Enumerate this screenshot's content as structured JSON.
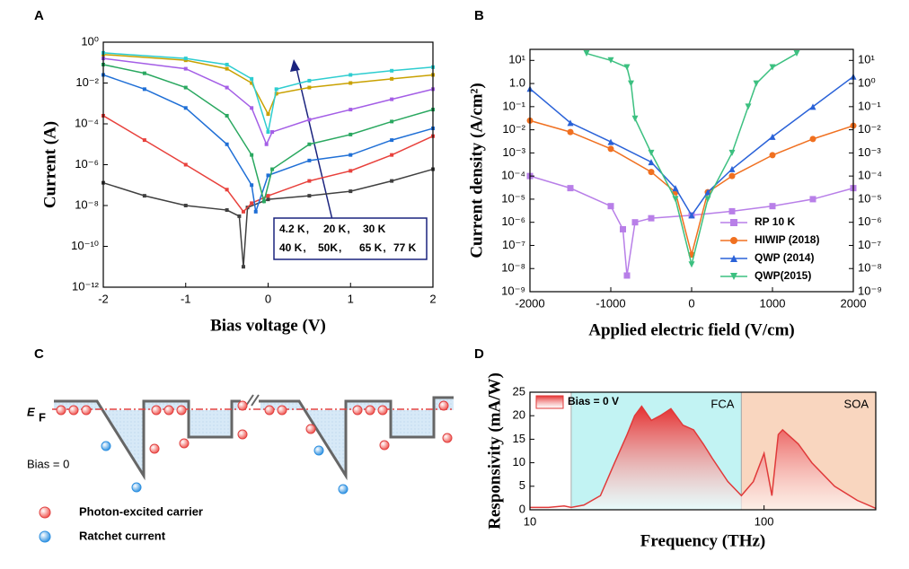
{
  "chart_data": [
    {
      "type": "line",
      "panel": "A",
      "xlabel": "Bias voltage (V)",
      "ylabel": "Current (A)",
      "yscale": "log",
      "xlim": [
        -2,
        2
      ],
      "xticks": [
        -2,
        -1,
        0,
        1,
        2
      ],
      "ylim": [
        1e-12,
        1
      ],
      "yticks": [
        {
          "value": 1,
          "label": "10⁰"
        },
        {
          "value": 0.01,
          "label": "10⁻²"
        },
        {
          "value": 0.0001,
          "label": "10⁻⁴"
        },
        {
          "value": 1e-06,
          "label": "10⁻⁶"
        },
        {
          "value": 1e-08,
          "label": "10⁻⁸"
        },
        {
          "value": 1e-10,
          "label": "10⁻¹⁰"
        },
        {
          "value": 1e-12,
          "label": "10⁻¹²"
        }
      ],
      "legend_separator": ",",
      "series": [
        {
          "name": "4.2 K",
          "color": "#404040",
          "marker": "square",
          "x": [
            -2,
            -1.5,
            -1,
            -0.5,
            -0.35,
            -0.3,
            -0.25,
            0,
            0.5,
            1,
            1.5,
            2
          ],
          "values": [
            1.3e-07,
            3e-08,
            1e-08,
            6e-09,
            3e-09,
            1e-11,
            8e-09,
            2e-08,
            3e-08,
            5e-08,
            1.6e-07,
            6e-07
          ]
        },
        {
          "name": "20 K",
          "color": "#e8413c",
          "marker": "square",
          "x": [
            -2,
            -1.5,
            -1,
            -0.5,
            -0.3,
            -0.2,
            0,
            0.5,
            1,
            1.5,
            2
          ],
          "values": [
            0.00025,
            1.6e-05,
            1e-06,
            6e-08,
            5e-09,
            1.3e-08,
            3e-08,
            1.6e-07,
            5e-07,
            3e-06,
            2.5e-05
          ]
        },
        {
          "name": "30 K",
          "color": "#1f6fd6",
          "marker": "square",
          "x": [
            -2,
            -1.5,
            -1,
            -0.5,
            -0.2,
            -0.15,
            0,
            0.5,
            1,
            1.5,
            2
          ],
          "values": [
            0.025,
            0.005,
            0.0006,
            1e-05,
            1e-07,
            5e-09,
            3e-07,
            1.6e-06,
            3e-06,
            1.6e-05,
            6e-05
          ]
        },
        {
          "name": "40 K",
          "color": "#2aa860",
          "marker": "square",
          "x": [
            -2,
            -1.5,
            -1,
            -0.5,
            -0.2,
            -0.05,
            0.05,
            0.5,
            1,
            1.5,
            2
          ],
          "values": [
            0.08,
            0.03,
            0.006,
            0.00025,
            3e-06,
            1.6e-08,
            6e-07,
            1e-05,
            3e-05,
            0.00013,
            0.0005
          ]
        },
        {
          "name": "50K",
          "color": "#a45ee6",
          "marker": "square",
          "x": [
            -2,
            -1,
            -0.5,
            -0.2,
            -0.02,
            0.05,
            0.5,
            1,
            1.5,
            2
          ],
          "values": [
            0.16,
            0.05,
            0.006,
            0.0006,
            1e-05,
            4e-05,
            0.00016,
            0.0005,
            0.0016,
            0.005
          ]
        },
        {
          "name": "65 K",
          "color": "#c9a100",
          "marker": "square",
          "x": [
            -2,
            -1,
            -0.5,
            -0.2,
            0,
            0.1,
            0.5,
            1,
            1.5,
            2
          ],
          "values": [
            0.25,
            0.13,
            0.05,
            0.01,
            0.0003,
            0.003,
            0.006,
            0.01,
            0.016,
            0.025
          ]
        },
        {
          "name": "77 K",
          "color": "#2ecdd0",
          "marker": "square",
          "x": [
            -2,
            -1,
            -0.5,
            -0.2,
            0,
            0.1,
            0.5,
            1,
            1.5,
            2
          ],
          "values": [
            0.3,
            0.16,
            0.08,
            0.016,
            4e-05,
            0.005,
            0.013,
            0.025,
            0.04,
            0.06
          ]
        }
      ]
    },
    {
      "type": "line",
      "panel": "B",
      "xlabel": "Applied electric field (V/cm)",
      "ylabel": "Current density (A/cm²)",
      "yscale": "log",
      "xlim": [
        -2000,
        2000
      ],
      "xticks": [
        -2000,
        -1000,
        0,
        1000,
        2000
      ],
      "ylim": [
        1e-09,
        30
      ],
      "yticks": [
        {
          "value": 10,
          "label": "10¹"
        },
        {
          "value": 1,
          "label": "1.0"
        },
        {
          "value": 0.1,
          "label": "10⁻¹"
        },
        {
          "value": 0.01,
          "label": "10⁻²"
        },
        {
          "value": 0.001,
          "label": "10⁻³"
        },
        {
          "value": 0.0001,
          "label": "10⁻⁴"
        },
        {
          "value": 1e-05,
          "label": "10⁻⁵"
        },
        {
          "value": 1e-06,
          "label": "10⁻⁶"
        },
        {
          "value": 1e-07,
          "label": "10⁻⁷"
        },
        {
          "value": 1e-08,
          "label": "10⁻⁸"
        },
        {
          "value": 1e-09,
          "label": "10⁻⁹"
        }
      ],
      "y2lim": [
        1e-09,
        30
      ],
      "y2ticks": [
        {
          "value": 10,
          "label": "10¹"
        },
        {
          "value": 1,
          "label": "10⁰"
        },
        {
          "value": 0.1,
          "label": "10⁻¹"
        },
        {
          "value": 0.01,
          "label": "10⁻²"
        },
        {
          "value": 0.001,
          "label": "10⁻³"
        },
        {
          "value": 0.0001,
          "label": "10⁻⁴"
        },
        {
          "value": 1e-05,
          "label": "10⁻⁵"
        },
        {
          "value": 1e-06,
          "label": "10⁻⁶"
        },
        {
          "value": 1e-07,
          "label": "10⁻⁷"
        },
        {
          "value": 1e-08,
          "label": "10⁻⁸"
        },
        {
          "value": 1e-09,
          "label": "10⁻⁹"
        }
      ],
      "series": [
        {
          "name": "RP 10 K",
          "color": "#b87fe8",
          "marker": "square",
          "x": [
            -2000,
            -1500,
            -1000,
            -850,
            -800,
            -700,
            -500,
            0,
            500,
            1000,
            1500,
            2000
          ],
          "values": [
            0.0001,
            3e-05,
            5e-06,
            5e-07,
            5e-09,
            1e-06,
            1.5e-06,
            2e-06,
            3e-06,
            5e-06,
            1e-05,
            3e-05
          ]
        },
        {
          "name": "HIWIP (2018)",
          "color": "#f07020",
          "marker": "circle",
          "x": [
            -2000,
            -1500,
            -1000,
            -500,
            -200,
            0,
            200,
            500,
            1000,
            1500,
            2000
          ],
          "values": [
            0.025,
            0.008,
            0.0015,
            0.00015,
            2e-05,
            4e-08,
            2e-05,
            0.0001,
            0.0008,
            0.004,
            0.015
          ]
        },
        {
          "name": "QWP (2014)",
          "color": "#2a62d8",
          "marker": "triangle",
          "x": [
            -2000,
            -1500,
            -1000,
            -500,
            -200,
            0,
            200,
            500,
            1000,
            1500,
            2000
          ],
          "values": [
            0.6,
            0.02,
            0.003,
            0.0004,
            3e-05,
            2e-06,
            2e-05,
            0.0002,
            0.005,
            0.1,
            2
          ]
        },
        {
          "name": "QWP(2015)",
          "color": "#3cc080",
          "marker": "triangle-down",
          "x": [
            -1300,
            -1000,
            -800,
            -750,
            -700,
            -500,
            -200,
            0,
            200,
            500,
            700,
            800,
            1000,
            1300
          ],
          "values": [
            20,
            10,
            5,
            1,
            0.03,
            0.001,
            1e-05,
            1.5e-08,
            1e-05,
            0.001,
            0.1,
            1,
            5,
            20
          ]
        }
      ]
    },
    {
      "type": "area",
      "panel": "D",
      "xlabel": "Frequency (THz)",
      "ylabel": "Responsivity (mA/W)",
      "xscale": "log",
      "xlim": [
        10,
        300
      ],
      "xticks": [
        10,
        100
      ],
      "ylim": [
        0,
        25
      ],
      "yticks": [
        0,
        5,
        10,
        15,
        20,
        25
      ],
      "regions": [
        {
          "label": "FCA",
          "range": [
            15,
            80
          ],
          "color": "#c2f3f3"
        },
        {
          "label": "SOA",
          "range": [
            80,
            300
          ],
          "color": "#f9d6bf"
        }
      ],
      "series": [
        {
          "name": "Bias = 0 V",
          "color": "#e03a3a",
          "x": [
            10,
            12,
            14,
            15,
            17,
            20,
            23,
            26,
            28,
            30,
            33,
            36,
            40,
            45,
            50,
            55,
            60,
            70,
            80,
            90,
            100,
            108,
            115,
            120,
            140,
            160,
            200,
            250,
            300
          ],
          "values": [
            0.5,
            0.5,
            0.8,
            0.5,
            1,
            3,
            10,
            16,
            20,
            22,
            19,
            20,
            21.5,
            18,
            17,
            14,
            11,
            6,
            3,
            6,
            12,
            3,
            16,
            17,
            14,
            10,
            5,
            2,
            0.3
          ]
        }
      ]
    }
  ],
  "panel_c": {
    "panel": "C",
    "level_label": "E",
    "level_subscript": "F",
    "bias_label": "Bias = 0",
    "legend": [
      "Photon-excited carrier",
      "Ratchet current"
    ]
  }
}
